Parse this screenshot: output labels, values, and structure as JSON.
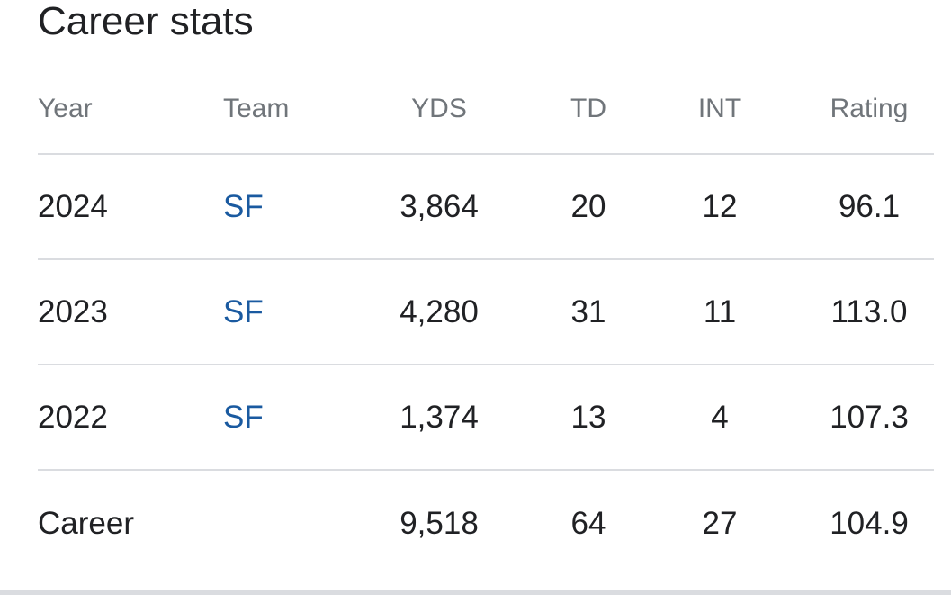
{
  "title": "Career stats",
  "columns": {
    "year": "Year",
    "team": "Team",
    "yds": "YDS",
    "td": "TD",
    "int": "INT",
    "rating": "Rating"
  },
  "rows": [
    {
      "year": "2024",
      "team": "SF",
      "yds": "3,864",
      "td": "20",
      "int": "12",
      "rating": "96.1"
    },
    {
      "year": "2023",
      "team": "SF",
      "yds": "4,280",
      "td": "31",
      "int": "11",
      "rating": "113.0"
    },
    {
      "year": "2022",
      "team": "SF",
      "yds": "1,374",
      "td": "13",
      "int": "4",
      "rating": "107.3"
    }
  ],
  "career": {
    "label": "Career",
    "yds": "9,518",
    "td": "64",
    "int": "27",
    "rating": "104.9"
  },
  "colors": {
    "link": "#1a5aa0",
    "header_text": "#70757a",
    "divider": "#dadce0"
  }
}
